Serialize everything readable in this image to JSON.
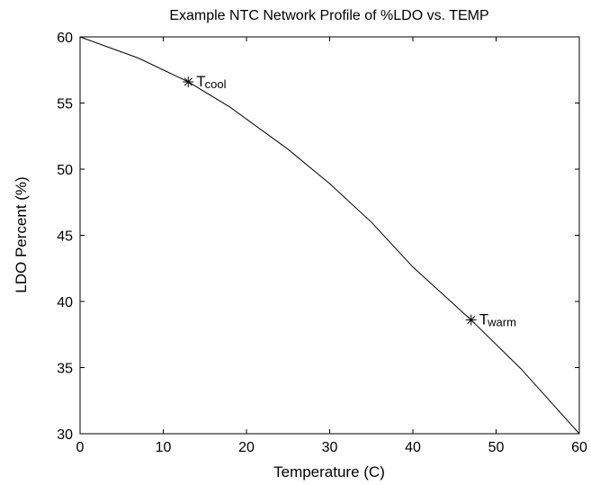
{
  "chart_data": {
    "type": "line",
    "title": "Example NTC Network Profile of %LDO vs. TEMP",
    "xlabel": "Temperature (C)",
    "ylabel": "LDO Percent (%)",
    "xlim": [
      0,
      60
    ],
    "ylim": [
      30,
      60
    ],
    "xticks": [
      0,
      10,
      20,
      30,
      40,
      50,
      60
    ],
    "yticks": [
      30,
      35,
      40,
      45,
      50,
      55,
      60
    ],
    "grid": false,
    "series": [
      {
        "x": [
          0,
          7,
          13,
          18,
          25,
          30,
          35,
          40,
          47,
          53,
          60
        ],
        "y": [
          60,
          58.4,
          56.6,
          54.7,
          51.5,
          48.9,
          46.0,
          42.6,
          38.6,
          34.9,
          30
        ]
      }
    ],
    "annotations": [
      {
        "marker": "*",
        "x": 13,
        "y": 56.6,
        "label_main": "T",
        "label_sub": "cool"
      },
      {
        "marker": "*",
        "x": 47,
        "y": 38.6,
        "label_main": "T",
        "label_sub": "warm"
      }
    ],
    "colors": {
      "line": "#000000",
      "axes": "#000000",
      "background": "#ffffff"
    }
  }
}
